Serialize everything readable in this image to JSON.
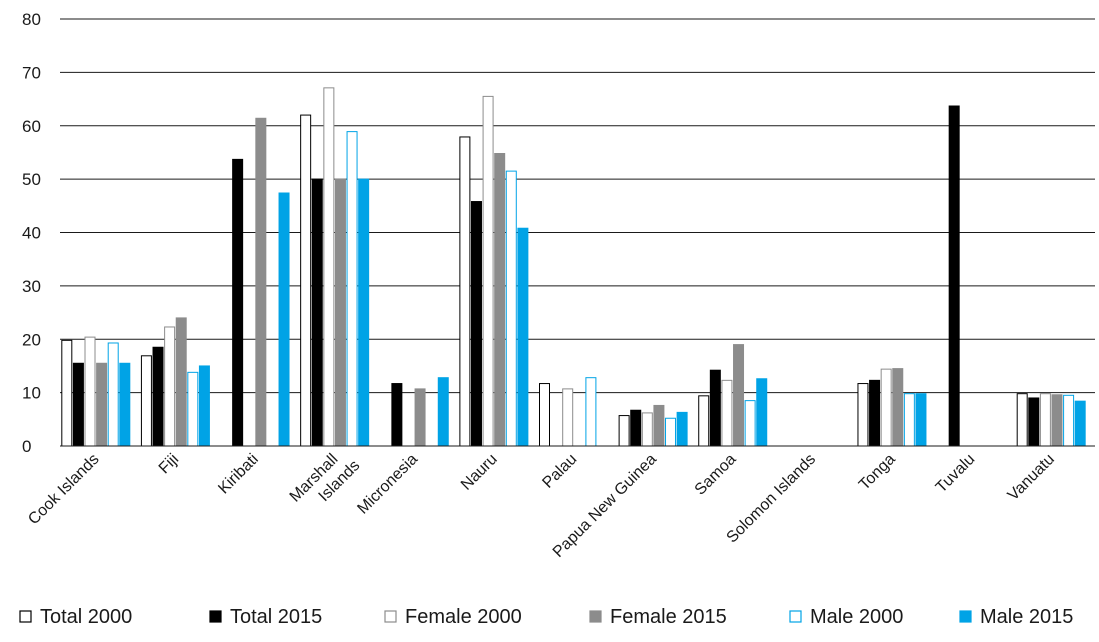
{
  "chart_data": {
    "type": "bar",
    "title": "",
    "xlabel": "",
    "ylabel": "",
    "ylim": [
      0,
      80
    ],
    "yticks": [
      0,
      10,
      20,
      30,
      40,
      50,
      60,
      70,
      80
    ],
    "grid": true,
    "legend_position": "bottom",
    "categories": [
      "Cook Islands",
      "Fiji",
      "Kiribati",
      "Marshall Islands",
      "Micronesia",
      "Nauru",
      "Palau",
      "Papua New Guinea",
      "Samoa",
      "Solomon Islands",
      "Tonga",
      "Tuvalu",
      "Vanuatu"
    ],
    "series": [
      {
        "name": "Total 2000",
        "fill": "#ffffff",
        "stroke": "#000000",
        "values": [
          19.8,
          16.9,
          null,
          62.0,
          null,
          57.9,
          11.7,
          5.7,
          9.4,
          null,
          11.7,
          null,
          9.8
        ]
      },
      {
        "name": "Total 2015",
        "fill": "#000000",
        "stroke": "#000000",
        "values": [
          15.5,
          18.5,
          53.7,
          50.0,
          11.7,
          45.8,
          null,
          6.7,
          14.2,
          null,
          12.3,
          63.7,
          9.0
        ]
      },
      {
        "name": "Female 2000",
        "fill": "#ffffff",
        "stroke": "#8c8c8c",
        "values": [
          20.4,
          22.3,
          null,
          67.1,
          null,
          65.5,
          10.7,
          6.2,
          12.3,
          null,
          14.4,
          null,
          9.8
        ]
      },
      {
        "name": "Female 2015",
        "fill": "#8c8c8c",
        "stroke": "#8c8c8c",
        "values": [
          15.5,
          24.0,
          61.4,
          50.0,
          10.7,
          54.8,
          null,
          7.6,
          19.0,
          null,
          14.5,
          null,
          9.6
        ]
      },
      {
        "name": "Male 2000",
        "fill": "#ffffff",
        "stroke": "#00a3e6",
        "values": [
          19.3,
          13.8,
          null,
          58.9,
          null,
          51.5,
          12.8,
          5.2,
          8.5,
          null,
          9.8,
          null,
          9.5
        ]
      },
      {
        "name": "Male 2015",
        "fill": "#00a3e6",
        "stroke": "#00a3e6",
        "values": [
          15.5,
          15.0,
          47.4,
          50.0,
          12.8,
          40.8,
          null,
          6.3,
          12.6,
          null,
          9.8,
          null,
          8.4
        ]
      }
    ]
  }
}
